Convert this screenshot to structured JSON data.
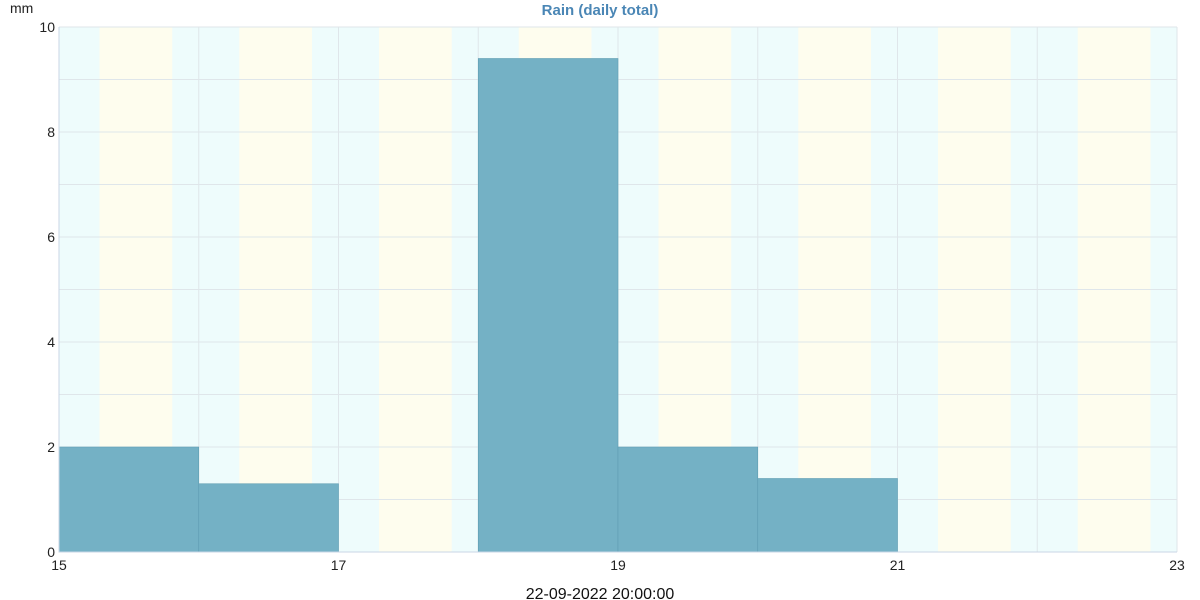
{
  "chart_data": {
    "type": "bar",
    "title": "Rain (daily total)",
    "ylabel": "mm",
    "xlabel": "22-09-2022 20:00:00",
    "xlim": [
      15,
      23
    ],
    "ylim": [
      0,
      10
    ],
    "x_ticks": [
      "15",
      "17",
      "19",
      "21",
      "23"
    ],
    "y_ticks": [
      "0",
      "2",
      "4",
      "6",
      "8",
      "10"
    ],
    "grid": true,
    "bars": [
      {
        "start": 15,
        "end": 16,
        "value": 2.0
      },
      {
        "start": 16,
        "end": 17,
        "value": 1.3
      },
      {
        "start": 17,
        "end": 18,
        "value": 0
      },
      {
        "start": 18,
        "end": 19,
        "value": 9.4
      },
      {
        "start": 19,
        "end": 20,
        "value": 2.0
      },
      {
        "start": 20,
        "end": 21,
        "value": 1.4
      },
      {
        "start": 21,
        "end": 22,
        "value": 0
      },
      {
        "start": 22,
        "end": 23,
        "value": 0
      }
    ],
    "colors": {
      "bar": "#74b1c5",
      "bar_edge": "#5f9db2",
      "night_band": "#eefcfc",
      "day_band": "#fefdee",
      "grid": "#dfe6ea",
      "axis": "#c9d6e6"
    }
  }
}
